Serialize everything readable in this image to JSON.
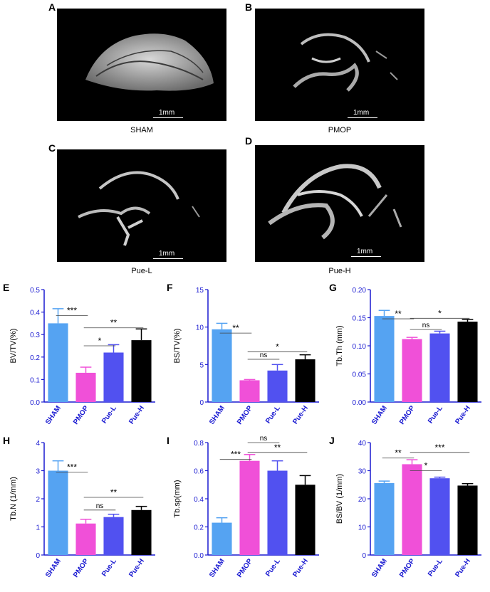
{
  "figure": {
    "images": [
      {
        "letter": "A",
        "caption": "SHAM",
        "scale_label": "1mm"
      },
      {
        "letter": "B",
        "caption": "PMOP",
        "scale_label": "1mm"
      },
      {
        "letter": "C",
        "caption": "Pue-L",
        "scale_label": "1mm"
      },
      {
        "letter": "D",
        "caption": "Pue-H",
        "scale_label": "1mm"
      }
    ],
    "colors": {
      "SHAM": "#55a3f2",
      "PMOP": "#f050d8",
      "Pue-L": "#5151f0",
      "Pue-H": "#000000",
      "axis": "#1a1ad1"
    }
  },
  "chart_data": [
    {
      "letter": "E",
      "type": "bar",
      "ylabel": "BV/TV(%)",
      "categories": [
        "SHAM",
        "PMOP",
        "Pue-L",
        "Pue-H"
      ],
      "values": [
        0.35,
        0.13,
        0.22,
        0.275
      ],
      "errors": [
        0.065,
        0.025,
        0.035,
        0.05
      ],
      "ylim": [
        0,
        0.5
      ],
      "ticks": [
        "0.0",
        "0.1",
        "0.2",
        "0.3",
        "0.4",
        "0.5"
      ],
      "comparisons": [
        {
          "from": 0,
          "to": 1,
          "label": "***",
          "level": 0.385
        },
        {
          "from": 1,
          "to": 2,
          "label": "*",
          "level": 0.25
        },
        {
          "from": 1,
          "to": 3,
          "label": "**",
          "level": 0.33
        }
      ]
    },
    {
      "letter": "F",
      "type": "bar",
      "ylabel": "BS/TV(%)",
      "categories": [
        "SHAM",
        "PMOP",
        "Pue-L",
        "Pue-H"
      ],
      "values": [
        9.7,
        2.9,
        4.2,
        5.7
      ],
      "errors": [
        0.8,
        0.1,
        0.8,
        0.6
      ],
      "ylim": [
        0,
        15
      ],
      "ticks": [
        "0",
        "5",
        "10",
        "15"
      ],
      "comparisons": [
        {
          "from": 0,
          "to": 1,
          "label": "**",
          "level": 9.2
        },
        {
          "from": 1,
          "to": 2,
          "label": "ns",
          "level": 5.7
        },
        {
          "from": 1,
          "to": 3,
          "label": "*",
          "level": 6.7
        }
      ]
    },
    {
      "letter": "G",
      "type": "bar",
      "ylabel": "Tb.Th (mm)",
      "categories": [
        "SHAM",
        "PMOP",
        "Pue-L",
        "Pue-H"
      ],
      "values": [
        0.153,
        0.112,
        0.122,
        0.143
      ],
      "errors": [
        0.01,
        0.003,
        0.004,
        0.004
      ],
      "ylim": [
        0,
        0.2
      ],
      "ticks": [
        "0.00",
        "0.05",
        "0.10",
        "0.15",
        "0.20"
      ],
      "comparisons": [
        {
          "from": 0,
          "to": 1,
          "label": "**",
          "level": 0.148
        },
        {
          "from": 1,
          "to": 2,
          "label": "ns",
          "level": 0.129
        },
        {
          "from": 1,
          "to": 3,
          "label": "*",
          "level": 0.149
        }
      ]
    },
    {
      "letter": "H",
      "type": "bar",
      "ylabel": "Tb.N (1/mm)",
      "categories": [
        "SHAM",
        "PMOP",
        "Pue-L",
        "Pue-H"
      ],
      "values": [
        3.0,
        1.12,
        1.35,
        1.6
      ],
      "errors": [
        0.35,
        0.15,
        0.1,
        0.13
      ],
      "ylim": [
        0,
        4
      ],
      "ticks": [
        "0",
        "1",
        "2",
        "3",
        "4"
      ],
      "comparisons": [
        {
          "from": 0,
          "to": 1,
          "label": "***",
          "level": 2.95
        },
        {
          "from": 1,
          "to": 2,
          "label": "ns",
          "level": 1.6
        },
        {
          "from": 1,
          "to": 3,
          "label": "**",
          "level": 2.05
        }
      ]
    },
    {
      "letter": "I",
      "type": "bar",
      "ylabel": "Tb.sp(mm)",
      "categories": [
        "SHAM",
        "PMOP",
        "Pue-L",
        "Pue-H"
      ],
      "values": [
        0.23,
        0.67,
        0.6,
        0.5
      ],
      "errors": [
        0.035,
        0.045,
        0.07,
        0.065
      ],
      "ylim": [
        0,
        0.8
      ],
      "ticks": [
        "0.0",
        "0.2",
        "0.4",
        "0.6",
        "0.8"
      ],
      "comparisons": [
        {
          "from": 0,
          "to": 1,
          "label": "***",
          "level": 0.68
        },
        {
          "from": 1,
          "to": 2,
          "label": "ns",
          "level": 0.8
        },
        {
          "from": 1,
          "to": 3,
          "label": "**",
          "level": 0.73
        }
      ]
    },
    {
      "letter": "J",
      "type": "bar",
      "ylabel": "BS/BV (1/mm)",
      "categories": [
        "SHAM",
        "PMOP",
        "Pue-L",
        "Pue-H"
      ],
      "values": [
        25.6,
        32.3,
        27.3,
        24.7
      ],
      "errors": [
        0.7,
        1.6,
        0.4,
        0.7
      ],
      "ylim": [
        0,
        40
      ],
      "ticks": [
        "0",
        "10",
        "20",
        "30",
        "40"
      ],
      "comparisons": [
        {
          "from": 0,
          "to": 1,
          "label": "**",
          "level": 34.5
        },
        {
          "from": 1,
          "to": 2,
          "label": "*",
          "level": 30.0
        },
        {
          "from": 1,
          "to": 3,
          "label": "***",
          "level": 36.5
        }
      ]
    }
  ]
}
